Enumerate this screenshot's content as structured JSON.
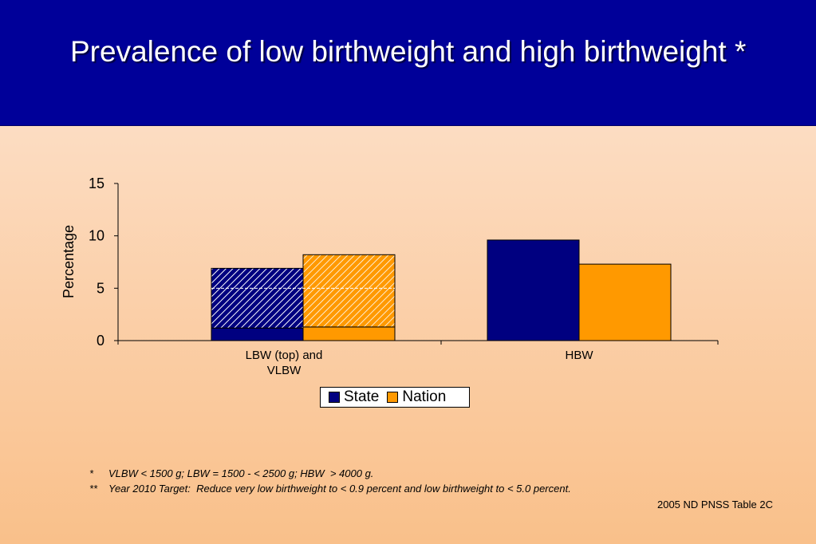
{
  "slide": {
    "title": "Prevalence of low birthweight and high birthweight *",
    "footnotes": [
      {
        "mark": "*",
        "text": "VLBW < 1500 g; LBW = 1500 - < 2500 g; HBW  > 4000 g."
      },
      {
        "mark": "**",
        "text": "Year 2010 Target:  Reduce very low birthweight to < 0.9 percent and low birthweight to < 5.0 percent."
      }
    ],
    "source": "2005 ND PNSS Table 2C"
  },
  "colors": {
    "state": "#000080",
    "nation": "#ff9900",
    "title_bar": "#000099"
  },
  "chart_data": {
    "type": "bar",
    "title": "",
    "xlabel": "",
    "ylabel": "Percentage",
    "ylim": [
      0,
      15
    ],
    "yticks": [
      0,
      5,
      10,
      15
    ],
    "grid": false,
    "legend_position": "bottom",
    "categories": [
      "LBW (top) and VLBW",
      "HBW"
    ],
    "series": [
      {
        "name": "State",
        "color": "#000080",
        "vlbw": [
          1.2,
          null
        ],
        "lbw": [
          5.7,
          null
        ],
        "values": [
          6.9,
          9.6
        ]
      },
      {
        "name": "Nation",
        "color": "#ff9900",
        "vlbw": [
          1.3,
          null
        ],
        "lbw": [
          6.9,
          null
        ],
        "values": [
          8.2,
          7.3
        ]
      }
    ],
    "stacked_note": "LBW shown hatched on top of VLBW for first category",
    "reference_line": {
      "value": 5.0
    }
  }
}
